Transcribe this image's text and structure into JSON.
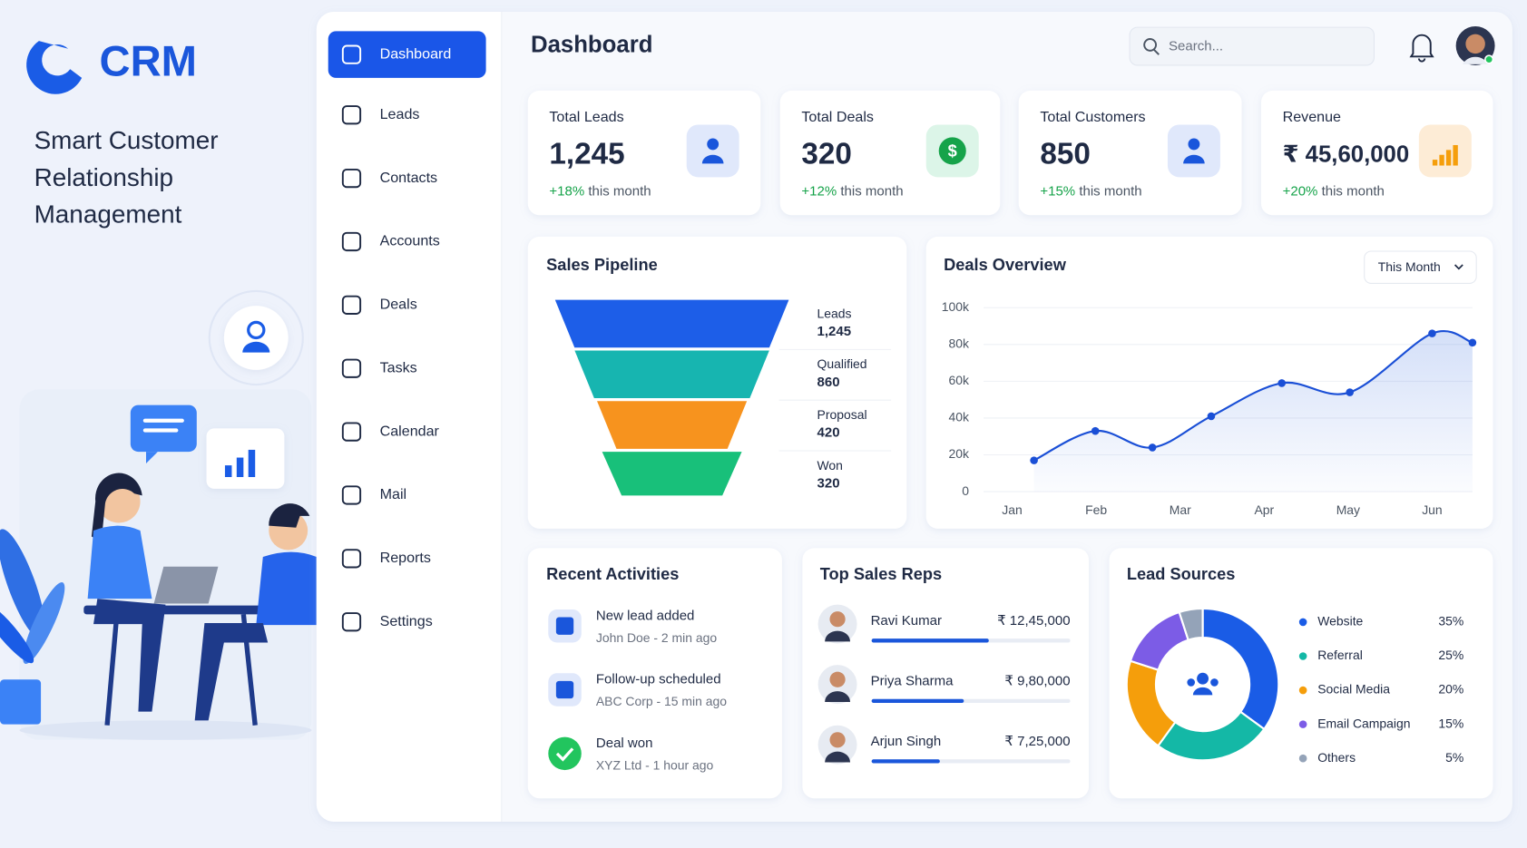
{
  "brand": {
    "name": "CRM",
    "tagline": [
      "Smart Customer",
      "Relationship",
      "Management"
    ]
  },
  "sidebar": {
    "items": [
      "Dashboard",
      "Leads",
      "Contacts",
      "Accounts",
      "Deals",
      "Tasks",
      "Calendar",
      "Mail",
      "Reports",
      "Settings"
    ],
    "active": 0
  },
  "header": {
    "title": "Dashboard",
    "search_placeholder": "Search..."
  },
  "kpis": [
    {
      "label": "Total Leads",
      "value": "1,245",
      "change": "+18%",
      "period": "this month"
    },
    {
      "label": "Total Deals",
      "value": "320",
      "change": "+12%",
      "period": "this month"
    },
    {
      "label": "Total Customers",
      "value": "850",
      "change": "+15%",
      "period": "this month"
    },
    {
      "label": "Revenue",
      "value": "₹ 45,60,000",
      "change": "+20%",
      "period": "this month"
    }
  ],
  "sales_pipeline": {
    "type": "funnel",
    "title": "Sales Pipeline",
    "categories": [
      "Leads",
      "Qualified",
      "Proposal",
      "Won"
    ],
    "values": [
      1245,
      860,
      420,
      320
    ],
    "value_labels": [
      "1,245",
      "860",
      "420",
      "320"
    ],
    "colors": [
      "#1d5ee8",
      "#17b5b0",
      "#f7931e",
      "#18c07a"
    ]
  },
  "deals_overview": {
    "type": "line",
    "title": "Deals Overview",
    "filter": "This Month",
    "x": [
      0.26,
      0.99,
      1.67,
      2.37,
      3.21,
      4.02,
      5,
      5.48
    ],
    "values": [
      17000,
      33000,
      24000,
      41000,
      59000,
      54000,
      86000,
      81000
    ],
    "xlim": [
      -0.34,
      5.48
    ],
    "xticks": [
      {
        "value": 0,
        "label": "Jan"
      },
      {
        "value": 1,
        "label": "Feb"
      },
      {
        "value": 2,
        "label": "Mar"
      },
      {
        "value": 3,
        "label": "Apr"
      },
      {
        "value": 4,
        "label": "May"
      },
      {
        "value": 5,
        "label": "Jun"
      }
    ],
    "ylim": [
      0,
      100000
    ],
    "yticks": [
      0,
      {
        "value": 20000,
        "label": "20k"
      },
      {
        "value": 40000,
        "label": "40k"
      },
      {
        "value": 60000,
        "label": "60k"
      },
      {
        "value": 80000,
        "label": "80k"
      },
      {
        "value": 100000,
        "label": "100k"
      }
    ],
    "color": "#1a4fd6",
    "grid": true
  },
  "recent_activities": {
    "title": "Recent Activities",
    "items": [
      {
        "title": "New lead added",
        "detail": "John Doe - 2 min ago"
      },
      {
        "title": "Follow-up scheduled",
        "detail": "ABC Corp - 15 min ago"
      },
      {
        "title": "Deal won",
        "detail": "XYZ Ltd - 1 hour ago"
      }
    ]
  },
  "top_sales_reps": {
    "type": "bar",
    "title": "Top Sales Reps",
    "categories": [
      "Ravi Kumar",
      "Priya Sharma",
      "Arjun Singh"
    ],
    "values": [
      1245000,
      980000,
      725000
    ],
    "value_labels": [
      "₹ 12,45,000",
      "₹ 9,80,000",
      "₹ 7,25,000"
    ],
    "color": "#1a56db"
  },
  "lead_sources": {
    "type": "pie",
    "title": "Lead Sources",
    "categories": [
      "Website",
      "Referral",
      "Social Media",
      "Email Campaign",
      "Others"
    ],
    "values": [
      35,
      25,
      20,
      15,
      5
    ],
    "value_labels": [
      "35%",
      "25%",
      "20%",
      "15%",
      "5%"
    ],
    "colors": [
      "#1a5ce6",
      "#14b8a6",
      "#f59e0b",
      "#7c5ce6",
      "#94a3b8"
    ]
  }
}
